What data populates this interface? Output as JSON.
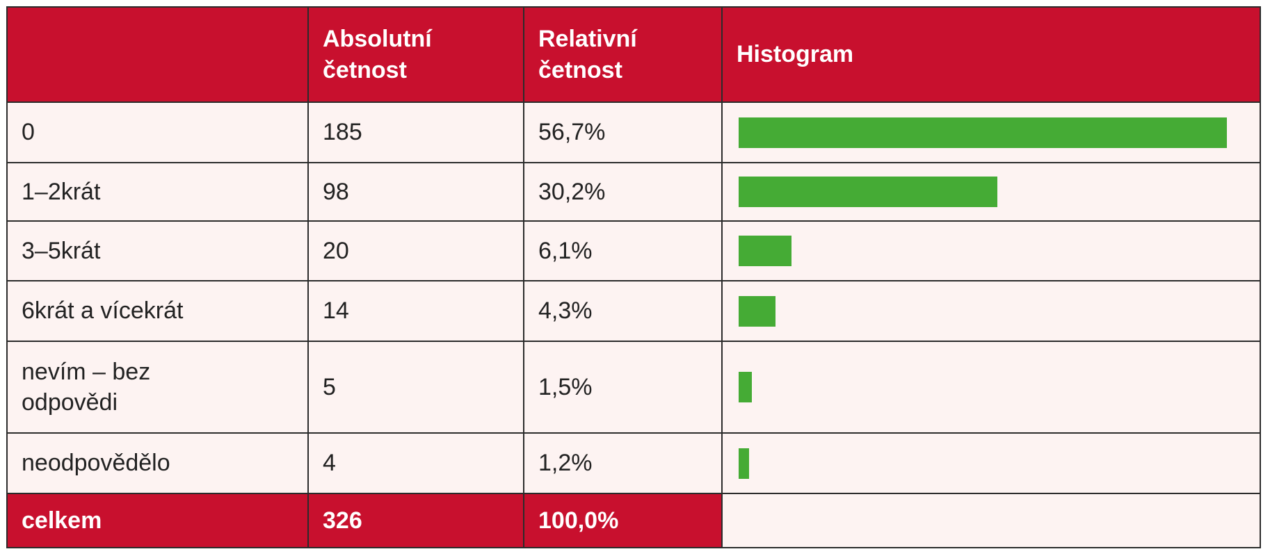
{
  "table": {
    "header": {
      "absolute": "Absolutní četnost",
      "relative": "Relativní četnost",
      "histogram": "Histogram"
    },
    "rows": [
      {
        "label": "0",
        "absolute": 185,
        "relative": "56,7%"
      },
      {
        "label": "1–2krát",
        "absolute": 98,
        "relative": "30,2%"
      },
      {
        "label": "3–5krát",
        "absolute": 20,
        "relative": "6,1%"
      },
      {
        "label": "6krát a vícekrát",
        "absolute": 14,
        "relative": "4,3%"
      },
      {
        "label": "nevím – bez odpovědi",
        "absolute": 5,
        "relative": "1,5%"
      },
      {
        "label": "neodpovědělo",
        "absolute": 4,
        "relative": "1,2%"
      }
    ],
    "total": {
      "label": "celkem",
      "absolute": 326,
      "relative": "100,0%"
    },
    "bar_color": "#45ab35"
  }
}
